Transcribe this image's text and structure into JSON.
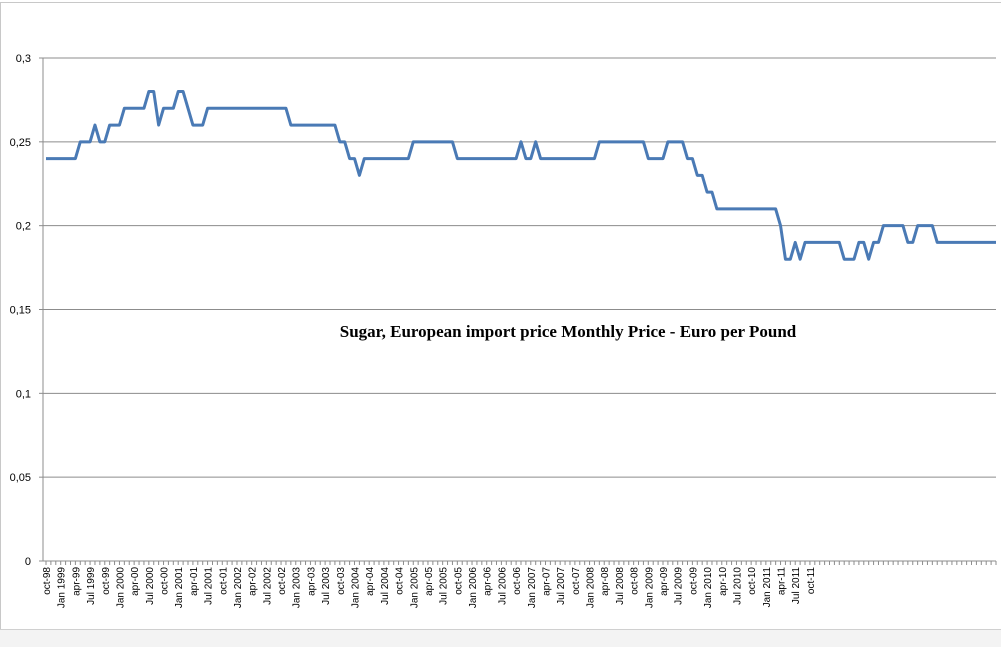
{
  "chart_data": {
    "type": "line",
    "title": "Sugar, European import price Monthly Price - Euro per Pound",
    "xlabel": "",
    "ylabel": "",
    "ylim": [
      0,
      0.3
    ],
    "yticks": [
      "0",
      "0,05",
      "0,1",
      "0,15",
      "0,2",
      "0,25",
      "0,3"
    ],
    "grid": true,
    "legend": "none",
    "line_color": "#4a7ab5",
    "x_tick_labels": [
      "oct-98",
      "Jan 1999",
      "apr-99",
      "Jul 1999",
      "oct-99",
      "Jan 2000",
      "apr-00",
      "Jul 2000",
      "oct-00",
      "Jan 2001",
      "apr-01",
      "Jul 2001",
      "oct-01",
      "Jan 2002",
      "apr-02",
      "Jul 2002",
      "oct-02",
      "Jan 2003",
      "apr-03",
      "Jul 2003",
      "oct-03",
      "Jan 2004",
      "apr-04",
      "Jul 2004",
      "oct-04",
      "Jan 2005",
      "apr-05",
      "Jul 2005",
      "oct-05",
      "Jan 2006",
      "apr-06",
      "Jul 2006",
      "oct-06",
      "Jan 2007",
      "apr-07",
      "Jul 2007",
      "oct-07",
      "Jan 2008",
      "apr-08",
      "Jul 2008",
      "oct-08",
      "Jan 2009",
      "apr-09",
      "Jul 2009",
      "oct-09",
      "Jan 2010",
      "apr-10",
      "Jul 2010",
      "oct-10",
      "Jan 2011",
      "apr-11",
      "Jul 2011",
      "oct-11"
    ],
    "x_start": "1998-10",
    "x_end": "2011-10",
    "series": [
      {
        "values": [
          0.24,
          0.24,
          0.24,
          0.24,
          0.24,
          0.24,
          0.24,
          0.25,
          0.25,
          0.25,
          0.26,
          0.25,
          0.25,
          0.26,
          0.26,
          0.26,
          0.27,
          0.27,
          0.27,
          0.27,
          0.27,
          0.28,
          0.28,
          0.26,
          0.27,
          0.27,
          0.27,
          0.28,
          0.28,
          0.27,
          0.26,
          0.26,
          0.26,
          0.27,
          0.27,
          0.27,
          0.27,
          0.27,
          0.27,
          0.27,
          0.27,
          0.27,
          0.27,
          0.27,
          0.27,
          0.27,
          0.27,
          0.27,
          0.27,
          0.27,
          0.26,
          0.26,
          0.26,
          0.26,
          0.26,
          0.26,
          0.26,
          0.26,
          0.26,
          0.26,
          0.25,
          0.25,
          0.24,
          0.24,
          0.23,
          0.24,
          0.24,
          0.24,
          0.24,
          0.24,
          0.24,
          0.24,
          0.24,
          0.24,
          0.24,
          0.25,
          0.25,
          0.25,
          0.25,
          0.25,
          0.25,
          0.25,
          0.25,
          0.25,
          0.24,
          0.24,
          0.24,
          0.24,
          0.24,
          0.24,
          0.24,
          0.24,
          0.24,
          0.24,
          0.24,
          0.24,
          0.24,
          0.25,
          0.24,
          0.24,
          0.25,
          0.24,
          0.24,
          0.24,
          0.24,
          0.24,
          0.24,
          0.24,
          0.24,
          0.24,
          0.24,
          0.24,
          0.24,
          0.25,
          0.25,
          0.25,
          0.25,
          0.25,
          0.25,
          0.25,
          0.25,
          0.25,
          0.25,
          0.24,
          0.24,
          0.24,
          0.24,
          0.25,
          0.25,
          0.25,
          0.25,
          0.24,
          0.24,
          0.23,
          0.23,
          0.22,
          0.22,
          0.21,
          0.21,
          0.21,
          0.21,
          0.21,
          0.21,
          0.21,
          0.21,
          0.21,
          0.21,
          0.21,
          0.21,
          0.21,
          0.2,
          0.18,
          0.18,
          0.19,
          0.18,
          0.19,
          0.19,
          0.19,
          0.19,
          0.19,
          0.19,
          0.19,
          0.19,
          0.18,
          0.18,
          0.18,
          0.19,
          0.19,
          0.18,
          0.19,
          0.19,
          0.2,
          0.2,
          0.2,
          0.2,
          0.2,
          0.19,
          0.19,
          0.2,
          0.2,
          0.2,
          0.2,
          0.19,
          0.19,
          0.19,
          0.19,
          0.19,
          0.19,
          0.19,
          0.19,
          0.19,
          0.19,
          0.19,
          0.19,
          0.19
        ]
      }
    ]
  }
}
